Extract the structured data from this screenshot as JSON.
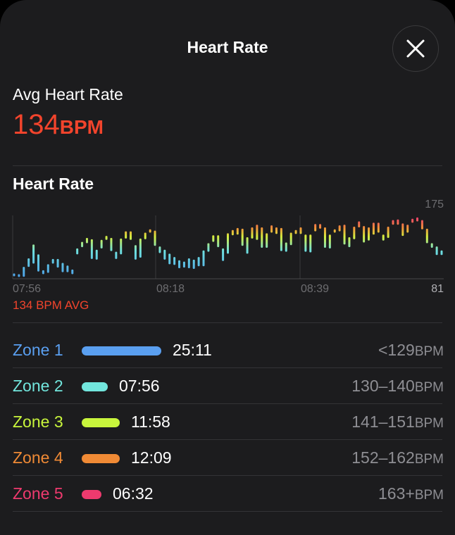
{
  "header": {
    "title": "Heart Rate",
    "close_icon": "close-icon"
  },
  "summary": {
    "label": "Avg Heart Rate",
    "value": "134",
    "unit": "BPM"
  },
  "section_title": "Heart Rate",
  "avg_caption": "134 BPM AVG",
  "chart_data": {
    "type": "range-bar",
    "title": "Heart Rate",
    "y_max_label": "175",
    "y_min_label": "81",
    "ylim": [
      81,
      175
    ],
    "x_labels": [
      "07:56",
      "08:18",
      "08:39"
    ],
    "ranges": [
      [
        85,
        89
      ],
      [
        84,
        88
      ],
      [
        84,
        99
      ],
      [
        99,
        112
      ],
      [
        104,
        133
      ],
      [
        92,
        118
      ],
      [
        88,
        94
      ],
      [
        90,
        103
      ],
      [
        104,
        111
      ],
      [
        98,
        111
      ],
      [
        91,
        105
      ],
      [
        91,
        101
      ],
      [
        88,
        95
      ],
      [
        118,
        127
      ],
      [
        129,
        137
      ],
      [
        135,
        143
      ],
      [
        111,
        141
      ],
      [
        110,
        125
      ],
      [
        127,
        140
      ],
      [
        140,
        146
      ],
      [
        123,
        143
      ],
      [
        111,
        122
      ],
      [
        118,
        142
      ],
      [
        142,
        153
      ],
      [
        140,
        153
      ],
      [
        110,
        132
      ],
      [
        113,
        142
      ],
      [
        141,
        151
      ],
      [
        151,
        156
      ],
      [
        131,
        154
      ],
      [
        120,
        130
      ],
      [
        110,
        125
      ],
      [
        103,
        119
      ],
      [
        102,
        114
      ],
      [
        97,
        109
      ],
      [
        98,
        107
      ],
      [
        97,
        112
      ],
      [
        96,
        110
      ],
      [
        100,
        114
      ],
      [
        100,
        124
      ],
      [
        122,
        135
      ],
      [
        137,
        147
      ],
      [
        129,
        147
      ],
      [
        108,
        127
      ],
      [
        119,
        150
      ],
      [
        147,
        155
      ],
      [
        148,
        158
      ],
      [
        131,
        157
      ],
      [
        119,
        144
      ],
      [
        142,
        159
      ],
      [
        140,
        163
      ],
      [
        128,
        159
      ],
      [
        128,
        150
      ],
      [
        151,
        162
      ],
      [
        149,
        159
      ],
      [
        123,
        158
      ],
      [
        122,
        136
      ],
      [
        132,
        151
      ],
      [
        149,
        155
      ],
      [
        149,
        159
      ],
      [
        122,
        148
      ],
      [
        121,
        148
      ],
      [
        153,
        164
      ],
      [
        157,
        164
      ],
      [
        128,
        159
      ],
      [
        127,
        148
      ],
      [
        151,
        156
      ],
      [
        153,
        162
      ],
      [
        133,
        163
      ],
      [
        129,
        144
      ],
      [
        141,
        160
      ],
      [
        159,
        168
      ],
      [
        136,
        161
      ],
      [
        139,
        159
      ],
      [
        148,
        166
      ],
      [
        151,
        166
      ],
      [
        139,
        148
      ],
      [
        143,
        160
      ],
      [
        163,
        170
      ],
      [
        163,
        171
      ],
      [
        146,
        165
      ],
      [
        151,
        163
      ],
      [
        166,
        172
      ],
      [
        168,
        174
      ],
      [
        156,
        170
      ],
      [
        135,
        157
      ],
      [
        128,
        135
      ],
      [
        117,
        130
      ],
      [
        117,
        124
      ]
    ]
  },
  "zones": [
    {
      "name": "Zone 1",
      "time": "25:11",
      "range": "<129",
      "unit": "BPM",
      "color": "#5a9ff0",
      "share": 0.4
    },
    {
      "name": "Zone 2",
      "time": "07:56",
      "range": "130–140",
      "unit": "BPM",
      "color": "#72e6dd",
      "share": 0.13
    },
    {
      "name": "Zone 3",
      "time": "11:58",
      "range": "141–151",
      "unit": "BPM",
      "color": "#c8f53c",
      "share": 0.19
    },
    {
      "name": "Zone 4",
      "time": "12:09",
      "range": "152–162",
      "unit": "BPM",
      "color": "#f08a35",
      "share": 0.19
    },
    {
      "name": "Zone 5",
      "time": "06:32",
      "range": "163+",
      "unit": "BPM",
      "color": "#ee3a6e",
      "share": 0.1
    }
  ]
}
